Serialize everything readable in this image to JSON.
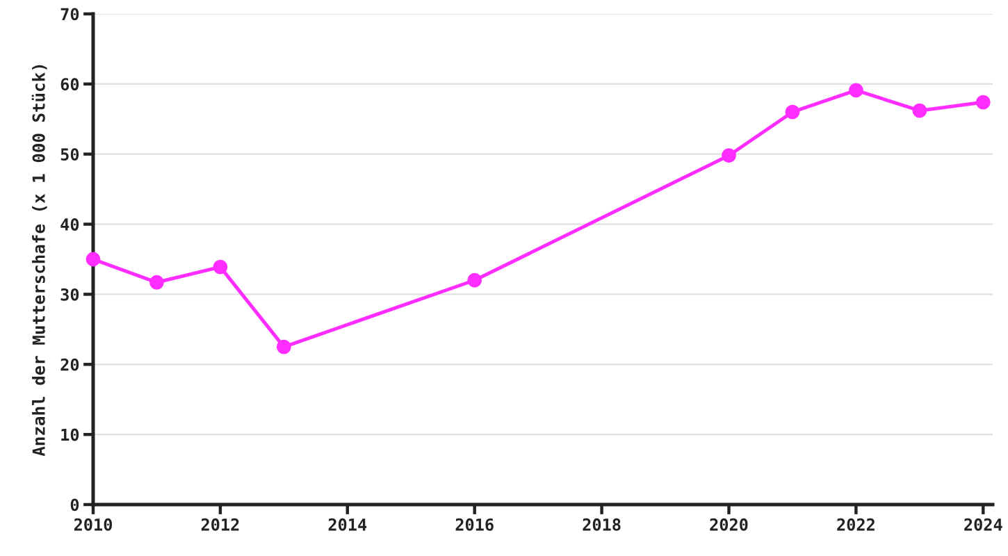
{
  "chart_data": {
    "type": "line",
    "x": [
      2010,
      2011,
      2012,
      2013,
      2016,
      2020,
      2021,
      2022,
      2023,
      2024
    ],
    "series": [
      {
        "color": "#ff2dff",
        "values": [
          35.0,
          31.7,
          33.9,
          22.5,
          32.0,
          49.8,
          56.0,
          59.1,
          56.2,
          57.4
        ]
      }
    ],
    "ylabel": "Anzahl der Mutterschafe (x 1 000 Stück)",
    "xlim": [
      2010,
      2024.15
    ],
    "xticks": [
      2010,
      2012,
      2014,
      2016,
      2018,
      2020,
      2022,
      2024
    ],
    "ylim": [
      0,
      70
    ],
    "yticks": [
      0,
      10,
      20,
      30,
      40,
      50,
      60,
      70
    ],
    "grid": "y",
    "marker": "circle",
    "line_style": "solid"
  }
}
